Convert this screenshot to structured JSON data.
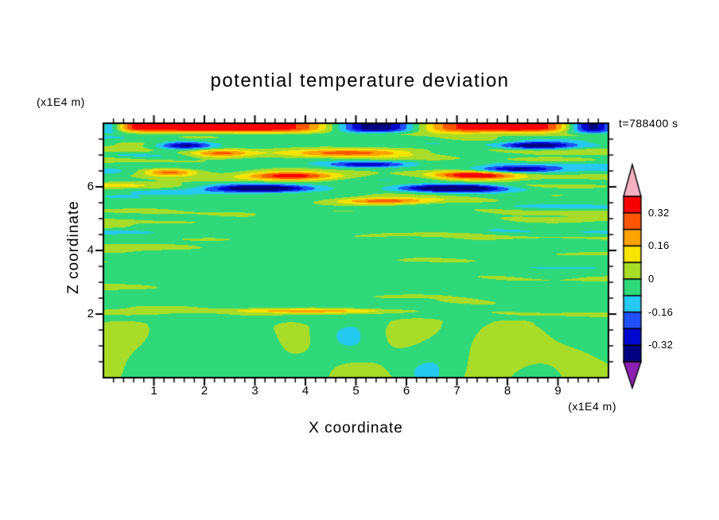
{
  "page": {
    "background": "#ffffff"
  },
  "chart_data": {
    "type": "heatmap",
    "title": "potential temperature deviation",
    "timestamp_label": "t=788400 s",
    "xlabel": "X coordinate",
    "ylabel": "Z coordinate",
    "x_axis_unit": "(x1E4 m)",
    "z_axis_unit": "(x1E4 m)",
    "xlim": [
      0,
      10
    ],
    "zlim": [
      0,
      8
    ],
    "x_ticks": [
      "1",
      "2",
      "3",
      "4",
      "5",
      "6",
      "7",
      "8",
      "9"
    ],
    "x_tick_values": [
      1,
      2,
      3,
      4,
      5,
      6,
      7,
      8,
      9
    ],
    "x_minor_step": 0.2,
    "z_ticks": [
      "2",
      "4",
      "6"
    ],
    "z_tick_values": [
      2,
      4,
      6
    ],
    "z_minor_step": 0.5,
    "grid": false,
    "colorbar": {
      "position": "right",
      "levels": [
        -0.4,
        -0.32,
        -0.24,
        -0.16,
        -0.08,
        0,
        0.08,
        0.16,
        0.24,
        0.32,
        0.4
      ],
      "tick_labels": [
        "0.32",
        "0.16",
        "0",
        "-0.16",
        "-0.32"
      ],
      "tick_values": [
        0.32,
        0.16,
        0,
        -0.16,
        -0.32
      ],
      "colors_low_to_high": [
        "#000080",
        "#0008cf",
        "#2050ff",
        "#25c9f2",
        "#2fd97a",
        "#a8dc28",
        "#f7e400",
        "#ffa300",
        "#ff5500",
        "#f80000"
      ],
      "under_arrow_color": "#8d20b0",
      "over_arrow_color": "#f6b0c4"
    },
    "field": {
      "background_bias": -0.025,
      "value_range": [
        -0.39,
        0.39
      ],
      "features": [
        {
          "x": 3.7,
          "z": 6.35,
          "sx": 0.85,
          "sz": 0.14,
          "amp": 0.4
        },
        {
          "x": 7.3,
          "z": 6.35,
          "sx": 0.8,
          "sz": 0.14,
          "amp": 0.38
        },
        {
          "x": 1.3,
          "z": 6.45,
          "sx": 0.55,
          "sz": 0.12,
          "amp": 0.3
        },
        {
          "x": 3.1,
          "z": 5.95,
          "sx": 1.0,
          "sz": 0.12,
          "amp": -0.45
        },
        {
          "x": 6.9,
          "z": 5.95,
          "sx": 0.95,
          "sz": 0.12,
          "amp": -0.45
        },
        {
          "x": 4.9,
          "z": 7.05,
          "sx": 1.2,
          "sz": 0.13,
          "amp": 0.33
        },
        {
          "x": 2.3,
          "z": 7.05,
          "sx": 0.6,
          "sz": 0.13,
          "amp": 0.26
        },
        {
          "x": 1.6,
          "z": 7.3,
          "sx": 0.55,
          "sz": 0.11,
          "amp": -0.36
        },
        {
          "x": 8.6,
          "z": 7.3,
          "sx": 0.7,
          "sz": 0.11,
          "amp": -0.36
        },
        {
          "x": 5.6,
          "z": 5.55,
          "sx": 0.9,
          "sz": 0.11,
          "amp": 0.3
        },
        {
          "x": 5.2,
          "z": 6.7,
          "sx": 0.8,
          "sz": 0.1,
          "amp": -0.3
        },
        {
          "x": 8.2,
          "z": 6.55,
          "sx": 0.8,
          "sz": 0.1,
          "amp": -0.28
        },
        {
          "x": 4.0,
          "z": 2.1,
          "sx": 1.6,
          "sz": 0.07,
          "amp": 0.24
        }
      ],
      "top_band": {
        "z_start": 7.6,
        "z_full": 7.85,
        "value": 0.4,
        "dips": [
          {
            "x": 5.4,
            "sx": 1.05,
            "depth": 0.78
          },
          {
            "x": 9.7,
            "sx": 0.6,
            "depth": 0.74
          },
          {
            "x": 0.1,
            "sx": 0.35,
            "depth": 0.5
          }
        ]
      }
    }
  }
}
